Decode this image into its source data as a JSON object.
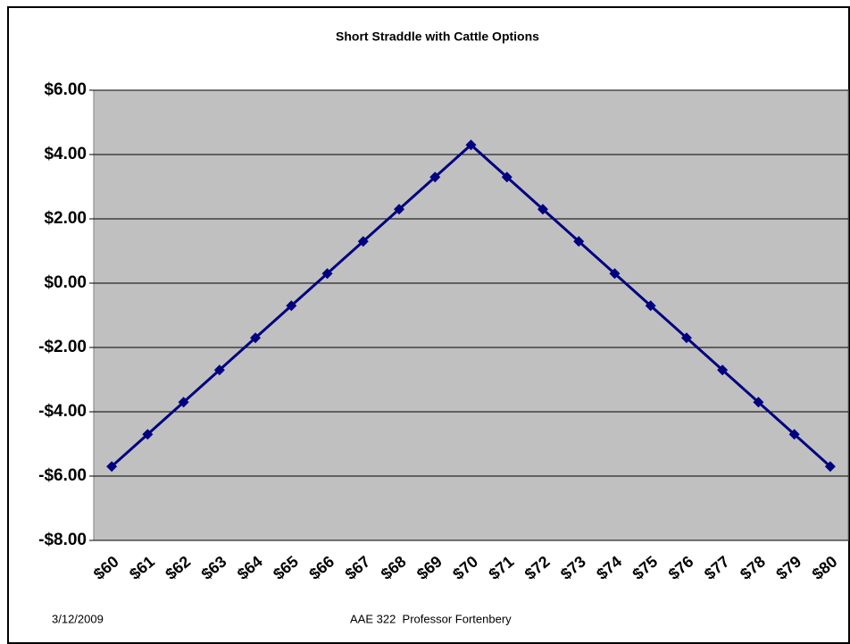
{
  "chart_data": {
    "type": "line",
    "title": "Short Straddle with Cattle Options",
    "categories": [
      "$60",
      "$61",
      "$62",
      "$63",
      "$64",
      "$65",
      "$66",
      "$67",
      "$68",
      "$69",
      "$70",
      "$71",
      "$72",
      "$73",
      "$74",
      "$75",
      "$76",
      "$77",
      "$78",
      "$79",
      "$80"
    ],
    "values": [
      -5.7,
      -4.7,
      -3.7,
      -2.7,
      -1.7,
      -0.7,
      0.3,
      1.3,
      2.3,
      3.3,
      4.3,
      3.3,
      2.3,
      1.3,
      0.3,
      -0.7,
      -1.7,
      -2.7,
      -3.7,
      -4.7,
      -5.7
    ],
    "color": "#000080",
    "ylim": [
      -8,
      6
    ],
    "yticks": [
      {
        "value": -8,
        "label": "-$8.00"
      },
      {
        "value": -6,
        "label": "-$6.00"
      },
      {
        "value": -4,
        "label": "-$4.00"
      },
      {
        "value": -2,
        "label": "-$2.00"
      },
      {
        "value": 0,
        "label": "$0.00"
      },
      {
        "value": 2,
        "label": "$2.00"
      },
      {
        "value": 4,
        "label": "$4.00"
      },
      {
        "value": 6,
        "label": "$6.00"
      }
    ],
    "grid": true
  },
  "footer": {
    "date": "3/12/2009",
    "course": "AAE 322  Professor Fortenbery"
  }
}
